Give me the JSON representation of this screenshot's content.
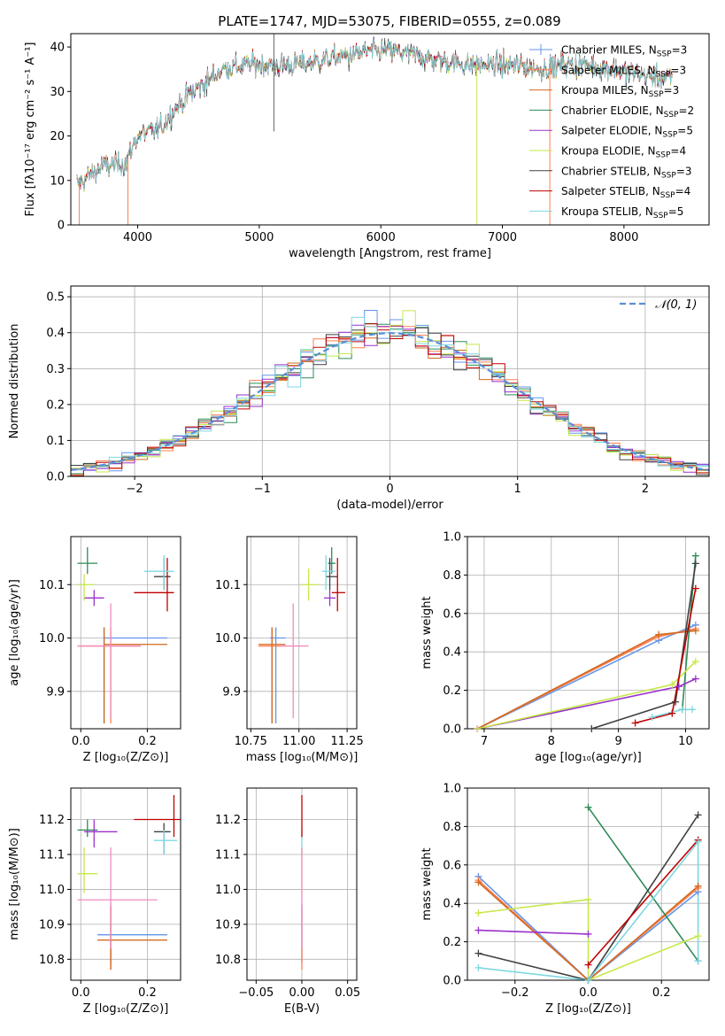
{
  "colors": {
    "Chabrier MILES": "#6495ed",
    "Salpeter MILES": "#ff7f50",
    "Kroupa MILES": "#d2691e",
    "Chabrier ELODIE": "#2e8b57",
    "Salpeter ELODIE": "#9932cc",
    "Kroupa ELODIE": "#c6e84a",
    "Chabrier STELIB": "#404040",
    "Salpeter STELIB": "#c00000",
    "Kroupa STELIB": "#7fd8e0",
    "extra_pink": "#f08cc0",
    "normal_curve": "#5b8fd6",
    "grid": "#b0b0b0"
  },
  "chart_data": [
    {
      "id": "spectrum",
      "type": "line",
      "title": "PLATE=1747, MJD=53075, FIBERID=0555, z=0.089",
      "xlabel": "wavelength [Angstrom, rest frame]",
      "ylabel": "Flux [fλ10⁻¹⁷ erg cm⁻² s⁻¹ A⁻¹]",
      "xlim": [
        3450,
        8700
      ],
      "ylim": [
        0,
        43
      ],
      "xticks": [
        "4000",
        "5000",
        "6000",
        "7000",
        "8000"
      ],
      "yticks": [
        "0",
        "10",
        "20",
        "30",
        "40"
      ],
      "grid": false,
      "legend_position": "top-right",
      "continuum_points": [
        [
          3500,
          9
        ],
        [
          3700,
          13
        ],
        [
          3900,
          14
        ],
        [
          4000,
          20
        ],
        [
          4200,
          22
        ],
        [
          4300,
          26
        ],
        [
          4500,
          31
        ],
        [
          4700,
          35
        ],
        [
          4900,
          36
        ],
        [
          5100,
          36
        ],
        [
          5300,
          36
        ],
        [
          5500,
          37
        ],
        [
          5700,
          38
        ],
        [
          5900,
          39
        ],
        [
          6100,
          39
        ],
        [
          6300,
          38
        ],
        [
          6500,
          37
        ],
        [
          6700,
          36
        ],
        [
          6900,
          36
        ],
        [
          7100,
          36
        ],
        [
          7300,
          35
        ],
        [
          7500,
          36
        ],
        [
          7700,
          36
        ],
        [
          7900,
          35
        ],
        [
          8100,
          34
        ],
        [
          8300,
          33
        ],
        [
          8400,
          33
        ]
      ],
      "series": [
        {
          "name": "Chabrier MILES, N_SSP=3",
          "label_main": "Chabrier MILES, N",
          "label_sub": "SSP",
          "label_tail": "=3"
        },
        {
          "name": "Salpeter MILES, N_SSP=3",
          "label_main": "Salpeter MILES, N",
          "label_sub": "SSP",
          "label_tail": "=3"
        },
        {
          "name": "Kroupa MILES, N_SSP=3",
          "label_main": "Kroupa MILES, N",
          "label_sub": "SSP",
          "label_tail": "=3"
        },
        {
          "name": "Chabrier ELODIE, N_SSP=2",
          "label_main": "Chabrier ELODIE, N",
          "label_sub": "SSP",
          "label_tail": "=2"
        },
        {
          "name": "Salpeter ELODIE, N_SSP=5",
          "label_main": "Salpeter ELODIE, N",
          "label_sub": "SSP",
          "label_tail": "=5"
        },
        {
          "name": "Kroupa ELODIE, N_SSP=4",
          "label_main": "Kroupa ELODIE, N",
          "label_sub": "SSP",
          "label_tail": "=4"
        },
        {
          "name": "Chabrier STELIB, N_SSP=3",
          "label_main": "Chabrier STELIB, N",
          "label_sub": "SSP",
          "label_tail": "=3"
        },
        {
          "name": "Salpeter STELIB, N_SSP=4",
          "label_main": "Salpeter STELIB, N",
          "label_sub": "SSP",
          "label_tail": "=4"
        },
        {
          "name": "Kroupa STELIB, N_SSP=5",
          "label_main": "Kroupa STELIB, N",
          "label_sub": "SSP",
          "label_tail": "=5"
        }
      ]
    },
    {
      "id": "residuals",
      "type": "line",
      "xlabel": "(data-model)/error",
      "ylabel": "Normed distribution",
      "xlim": [
        -2.5,
        2.5
      ],
      "ylim": [
        0,
        0.53
      ],
      "xticks": [
        "−2",
        "−1",
        "0",
        "1",
        "2"
      ],
      "yticks": [
        "0.0",
        "0.1",
        "0.2",
        "0.3",
        "0.4",
        "0.5"
      ],
      "grid": true,
      "legend_position": "top-right",
      "legend_label": "𝒩(0, 1)",
      "normal": {
        "mean": 0,
        "sigma": 1
      }
    },
    {
      "id": "z_vs_age",
      "type": "scatter",
      "xlabel": "Z [log₁₀(Z/Z⊙)]",
      "ylabel": "age  [log₁₀(age/yr)]",
      "xlim": [
        -0.03,
        0.3
      ],
      "ylim": [
        9.83,
        10.19
      ],
      "xticks": [
        "0.0",
        "0.2"
      ],
      "yticks": [
        "9.9",
        "10.0",
        "10.1"
      ],
      "grid": true,
      "points": [
        {
          "c": "Chabrier MILES",
          "x": 0.07,
          "y": 10.0,
          "xe": [
            0.07,
            0.26
          ],
          "ye": [
            9.84,
            10.02
          ]
        },
        {
          "c": "Salpeter MILES",
          "x": 0.09,
          "y": 9.985,
          "xe": [
            -0.01,
            0.18
          ],
          "ye": [
            9.84,
            10.02
          ]
        },
        {
          "c": "Kroupa MILES",
          "x": 0.07,
          "y": 9.988,
          "xe": [
            0.07,
            0.26
          ],
          "ye": [
            9.84,
            10.02
          ]
        },
        {
          "c": "Chabrier ELODIE",
          "x": 0.02,
          "y": 10.14,
          "xe": [
            -0.01,
            0.05
          ],
          "ye": [
            10.12,
            10.17
          ]
        },
        {
          "c": "Salpeter ELODIE",
          "x": 0.04,
          "y": 10.075,
          "xe": [
            0.01,
            0.07
          ],
          "ye": [
            10.06,
            10.09
          ]
        },
        {
          "c": "Kroupa ELODIE",
          "x": 0.01,
          "y": 10.1,
          "xe": [
            -0.01,
            0.04
          ],
          "ye": [
            10.07,
            10.12
          ]
        },
        {
          "c": "Chabrier STELIB",
          "x": 0.25,
          "y": 10.115,
          "xe": [
            0.22,
            0.27
          ],
          "ye": [
            10.09,
            10.15
          ]
        },
        {
          "c": "Salpeter STELIB",
          "x": 0.26,
          "y": 10.085,
          "xe": [
            0.16,
            0.28
          ],
          "ye": [
            10.05,
            10.15
          ]
        },
        {
          "c": "Kroupa STELIB",
          "x": 0.25,
          "y": 10.125,
          "xe": [
            0.19,
            0.28
          ],
          "ye": [
            10.09,
            10.155
          ]
        },
        {
          "c": "extra_pink",
          "x": 0.09,
          "y": 9.985,
          "xe": [
            -0.01,
            0.18
          ],
          "ye": [
            9.85,
            10.065
          ]
        }
      ]
    },
    {
      "id": "mass_vs_age",
      "type": "scatter",
      "xlabel": "mass [log₁₀(M/M⊙)]",
      "ylabel": "",
      "xlim": [
        10.73,
        11.3
      ],
      "ylim": [
        9.83,
        10.19
      ],
      "xticks": [
        "10.75",
        "11.00",
        "11.25"
      ],
      "yticks": [
        "9.9",
        "10.0",
        "10.1"
      ],
      "grid": true,
      "points": [
        {
          "c": "Chabrier MILES",
          "x": 10.88,
          "y": 10.0,
          "xe": [
            10.85,
            10.93
          ],
          "ye": [
            9.84,
            10.02
          ]
        },
        {
          "c": "Salpeter MILES",
          "x": 10.86,
          "y": 9.985,
          "xe": [
            10.79,
            10.93
          ],
          "ye": [
            9.84,
            10.02
          ]
        },
        {
          "c": "Kroupa MILES",
          "x": 10.86,
          "y": 9.988,
          "xe": [
            10.79,
            10.93
          ],
          "ye": [
            9.84,
            10.02
          ]
        },
        {
          "c": "Chabrier ELODIE",
          "x": 11.17,
          "y": 10.14,
          "xe": [
            11.15,
            11.19
          ],
          "ye": [
            10.12,
            10.17
          ]
        },
        {
          "c": "Salpeter ELODIE",
          "x": 11.16,
          "y": 10.075,
          "xe": [
            11.13,
            11.19
          ],
          "ye": [
            10.06,
            10.09
          ]
        },
        {
          "c": "Kroupa ELODIE",
          "x": 11.05,
          "y": 10.1,
          "xe": [
            11.01,
            11.1
          ],
          "ye": [
            10.07,
            10.13
          ]
        },
        {
          "c": "Chabrier STELIB",
          "x": 11.16,
          "y": 10.115,
          "xe": [
            11.14,
            11.2
          ],
          "ye": [
            10.09,
            10.15
          ]
        },
        {
          "c": "Salpeter STELIB",
          "x": 11.2,
          "y": 10.085,
          "xe": [
            11.17,
            11.24
          ],
          "ye": [
            10.05,
            10.15
          ]
        },
        {
          "c": "Kroupa STELIB",
          "x": 11.14,
          "y": 10.125,
          "xe": [
            11.12,
            11.19
          ],
          "ye": [
            10.09,
            10.155
          ]
        },
        {
          "c": "extra_pink",
          "x": 10.97,
          "y": 9.985,
          "xe": [
            10.9,
            11.05
          ],
          "ye": [
            9.85,
            10.065
          ]
        }
      ]
    },
    {
      "id": "weight_vs_age",
      "type": "line",
      "xlabel": "age  [log₁₀(age/yr)]",
      "ylabel": "mass weight",
      "xlim": [
        6.75,
        10.35
      ],
      "ylim": [
        0,
        1.0
      ],
      "xticks": [
        "7",
        "8",
        "9",
        "10"
      ],
      "yticks": [
        "0.0",
        "0.2",
        "0.4",
        "0.6",
        "0.8",
        "1.0"
      ],
      "grid": true,
      "series": [
        {
          "c": "Chabrier MILES",
          "x": [
            6.9,
            9.6,
            10.15
          ],
          "y": [
            0.0,
            0.46,
            0.54
          ]
        },
        {
          "c": "Salpeter MILES",
          "x": [
            6.9,
            9.6,
            10.15
          ],
          "y": [
            0.0,
            0.48,
            0.52
          ]
        },
        {
          "c": "Kroupa MILES",
          "x": [
            6.9,
            9.6,
            10.15
          ],
          "y": [
            0.0,
            0.49,
            0.51
          ]
        },
        {
          "c": "Chabrier ELODIE",
          "x": [
            9.95,
            10.15
          ],
          "y": [
            0.1,
            0.9
          ]
        },
        {
          "c": "Salpeter ELODIE",
          "x": [
            6.9,
            9.9,
            10.15
          ],
          "y": [
            0.0,
            0.22,
            0.26
          ]
        },
        {
          "c": "Kroupa ELODIE",
          "x": [
            6.9,
            9.8,
            10.15
          ],
          "y": [
            0.0,
            0.23,
            0.35
          ]
        },
        {
          "c": "Chabrier STELIB",
          "x": [
            8.6,
            9.85,
            10.15
          ],
          "y": [
            0.0,
            0.14,
            0.86
          ]
        },
        {
          "c": "Salpeter STELIB",
          "x": [
            9.25,
            9.8,
            10.15
          ],
          "y": [
            0.03,
            0.08,
            0.73
          ]
        },
        {
          "c": "Kroupa STELIB",
          "x": [
            9.5,
            9.95,
            10.1
          ],
          "y": [
            0.06,
            0.1,
            0.1
          ]
        }
      ]
    },
    {
      "id": "z_vs_mass",
      "type": "scatter",
      "xlabel": "Z [log₁₀(Z/Z⊙)]",
      "ylabel": "mass [log₁₀(M/M⊙)]",
      "xlim": [
        -0.03,
        0.3
      ],
      "ylim": [
        10.74,
        11.29
      ],
      "xticks": [
        "0.0",
        "0.2"
      ],
      "yticks": [
        "10.8",
        "10.9",
        "11.0",
        "11.1",
        "11.2"
      ],
      "grid": true,
      "points": [
        {
          "c": "Chabrier MILES",
          "x": 0.09,
          "y": 10.87,
          "xe": [
            0.05,
            0.26
          ],
          "ye": [
            10.79,
            10.96
          ]
        },
        {
          "c": "Salpeter MILES",
          "x": 0.09,
          "y": 10.855,
          "xe": [
            0.05,
            0.26
          ],
          "ye": [
            10.77,
            10.95
          ]
        },
        {
          "c": "Kroupa MILES",
          "x": 0.09,
          "y": 10.855,
          "xe": [
            0.05,
            0.26
          ],
          "ye": [
            10.77,
            10.95
          ]
        },
        {
          "c": "Chabrier ELODIE",
          "x": 0.02,
          "y": 11.17,
          "xe": [
            -0.01,
            0.05
          ],
          "ye": [
            11.15,
            11.2
          ]
        },
        {
          "c": "Salpeter ELODIE",
          "x": 0.04,
          "y": 11.165,
          "xe": [
            0.01,
            0.11
          ],
          "ye": [
            11.12,
            11.2
          ]
        },
        {
          "c": "Kroupa ELODIE",
          "x": 0.01,
          "y": 11.045,
          "xe": [
            -0.01,
            0.05
          ],
          "ye": [
            10.99,
            11.12
          ]
        },
        {
          "c": "Chabrier STELIB",
          "x": 0.25,
          "y": 11.165,
          "xe": [
            0.22,
            0.27
          ],
          "ye": [
            11.1,
            11.19
          ]
        },
        {
          "c": "Salpeter STELIB",
          "x": 0.28,
          "y": 11.2,
          "xe": [
            0.16,
            0.3
          ],
          "ye": [
            11.15,
            11.27
          ]
        },
        {
          "c": "Kroupa STELIB",
          "x": 0.25,
          "y": 11.14,
          "xe": [
            0.22,
            0.29
          ],
          "ye": [
            11.1,
            11.17
          ]
        },
        {
          "c": "extra_pink",
          "x": 0.09,
          "y": 10.97,
          "xe": [
            -0.01,
            0.23
          ],
          "ye": [
            10.83,
            11.12
          ]
        }
      ]
    },
    {
      "id": "ebv_vs_mass",
      "type": "scatter",
      "xlabel": "E(B-V)",
      "ylabel": "",
      "xlim": [
        -0.06,
        0.06
      ],
      "ylim": [
        10.74,
        11.29
      ],
      "xticks": [
        "−0.05",
        "0.00",
        "0.05"
      ],
      "yticks": [
        "10.8",
        "10.9",
        "11.0",
        "11.1",
        "11.2"
      ],
      "grid": true,
      "points": [
        {
          "c": "Chabrier MILES",
          "x": 0.0,
          "y": 10.87,
          "xe": [
            0.0,
            0.0
          ],
          "ye": [
            10.79,
            10.96
          ]
        },
        {
          "c": "Salpeter MILES",
          "x": 0.0,
          "y": 10.855,
          "xe": [
            0.0,
            0.0
          ],
          "ye": [
            10.77,
            10.95
          ]
        },
        {
          "c": "Kroupa ELODIE",
          "x": 0.0,
          "y": 11.045,
          "xe": [
            0.0,
            0.0
          ],
          "ye": [
            10.99,
            11.12
          ]
        },
        {
          "c": "Kroupa STELIB",
          "x": 0.0,
          "y": 11.14,
          "xe": [
            0.0,
            0.0
          ],
          "ye": [
            11.1,
            11.17
          ]
        },
        {
          "c": "Salpeter STELIB",
          "x": 0.0,
          "y": 11.2,
          "xe": [
            0.0,
            0.0
          ],
          "ye": [
            11.15,
            11.27
          ]
        },
        {
          "c": "extra_pink",
          "x": 0.0,
          "y": 10.97,
          "xe": [
            0.0,
            0.0
          ],
          "ye": [
            10.83,
            11.12
          ]
        }
      ]
    },
    {
      "id": "weight_vs_z",
      "type": "line",
      "xlabel": "Z [log₁₀(Z/Z⊙)]",
      "ylabel": "mass weight",
      "xlim": [
        -0.33,
        0.33
      ],
      "ylim": [
        0,
        1.0
      ],
      "xticks": [
        "−0.2",
        "0.0",
        "0.2"
      ],
      "yticks": [
        "0.0",
        "0.2",
        "0.4",
        "0.6",
        "0.8",
        "1.0"
      ],
      "grid": true,
      "series": [
        {
          "c": "Chabrier MILES",
          "x": [
            -0.3,
            0.0,
            0.3
          ],
          "y": [
            0.54,
            0.0,
            0.46
          ]
        },
        {
          "c": "Salpeter MILES",
          "x": [
            -0.3,
            0.0,
            0.3
          ],
          "y": [
            0.52,
            0.0,
            0.48
          ]
        },
        {
          "c": "Kroupa MILES",
          "x": [
            -0.3,
            0.0,
            0.3
          ],
          "y": [
            0.51,
            0.0,
            0.49
          ]
        },
        {
          "c": "Chabrier ELODIE",
          "x": [
            0.0,
            0.3
          ],
          "y": [
            0.9,
            0.1
          ]
        },
        {
          "c": "Salpeter ELODIE",
          "x": [
            -0.3,
            0.0
          ],
          "y": [
            0.26,
            0.24
          ]
        },
        {
          "c": "Kroupa ELODIE",
          "x": [
            -0.3,
            0.0,
            0.0,
            0.3
          ],
          "y": [
            0.35,
            0.42,
            0.0,
            0.23
          ]
        },
        {
          "c": "Chabrier STELIB",
          "x": [
            -0.3,
            0.0,
            0.3
          ],
          "y": [
            0.14,
            0.0,
            0.86
          ]
        },
        {
          "c": "Salpeter STELIB",
          "x": [
            0.0,
            0.3
          ],
          "y": [
            0.08,
            0.73
          ]
        },
        {
          "c": "Kroupa STELIB",
          "x": [
            -0.3,
            0.0,
            0.3,
            0.3
          ],
          "y": [
            0.065,
            0.0,
            0.72,
            0.1
          ]
        }
      ]
    }
  ]
}
